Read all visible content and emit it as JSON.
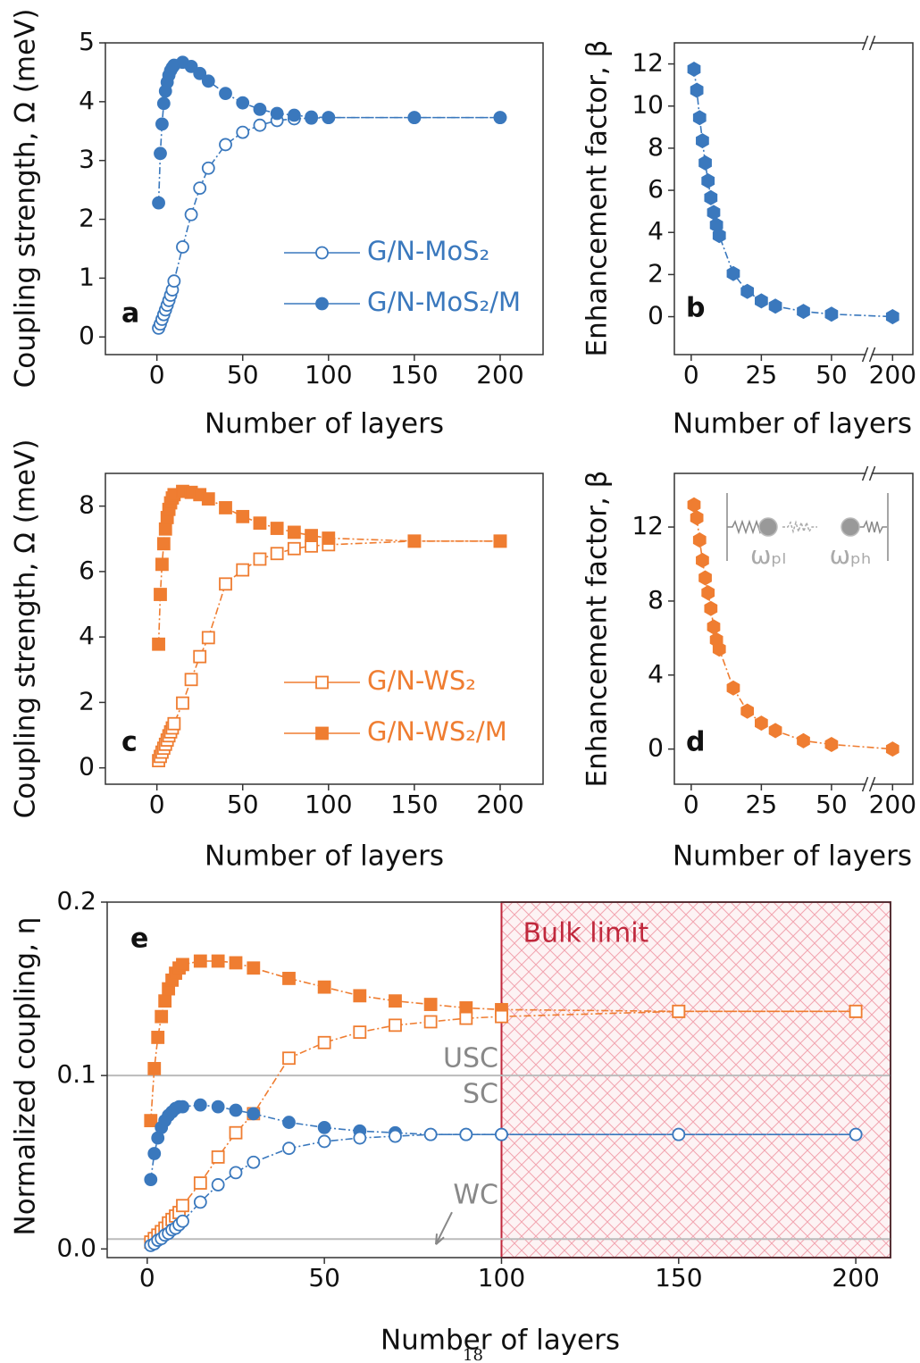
{
  "chart_data": [
    {
      "type": "line",
      "panel_label": "a",
      "xlabel": "Number of layers",
      "ylabel": "Coupling strength, Ω (meV)",
      "xlim": [
        -30,
        225
      ],
      "ylim": [
        -0.3,
        5
      ],
      "xticks": [
        0,
        50,
        100,
        150,
        200
      ],
      "yticks": [
        0,
        1,
        2,
        3,
        4,
        5
      ],
      "legend": "lower right",
      "series": [
        {
          "name": "G/N-MoS₂",
          "color": "#3a78bd",
          "marker": "circle",
          "filled": false,
          "x": [
            1,
            2,
            3,
            4,
            5,
            6,
            7,
            8,
            9,
            10,
            15,
            20,
            25,
            30,
            40,
            50,
            60,
            70,
            80,
            90,
            100,
            150,
            200
          ],
          "values": [
            0.15,
            0.22,
            0.3,
            0.38,
            0.46,
            0.54,
            0.62,
            0.71,
            0.8,
            0.95,
            1.53,
            2.08,
            2.53,
            2.87,
            3.27,
            3.48,
            3.6,
            3.68,
            3.71,
            3.72,
            3.73,
            3.73,
            3.73
          ]
        },
        {
          "name": "G/N-MoS₂/M",
          "color": "#3a78bd",
          "marker": "circle",
          "filled": true,
          "x": [
            1,
            2,
            3,
            4,
            5,
            6,
            7,
            8,
            9,
            10,
            15,
            20,
            25,
            30,
            40,
            50,
            60,
            70,
            80,
            90,
            100,
            150,
            200
          ],
          "values": [
            2.28,
            3.12,
            3.62,
            3.97,
            4.18,
            4.33,
            4.45,
            4.53,
            4.58,
            4.62,
            4.67,
            4.6,
            4.48,
            4.35,
            4.14,
            3.98,
            3.87,
            3.8,
            3.77,
            3.74,
            3.73,
            3.73,
            3.73
          ]
        }
      ]
    },
    {
      "type": "line",
      "panel_label": "b",
      "xlabel": "Number of layers",
      "ylabel": "Enhancement factor, β",
      "xlim": [
        -6,
        210
      ],
      "xbreak": [
        62,
        190
      ],
      "ylim": [
        -1.8,
        13
      ],
      "xticks": [
        0,
        25,
        50,
        200
      ],
      "yticks": [
        0,
        2,
        4,
        6,
        8,
        10,
        12
      ],
      "series": [
        {
          "color": "#3a78bd",
          "marker": "hexagon",
          "filled": true,
          "x": [
            1,
            2,
            3,
            4,
            5,
            6,
            7,
            8,
            9,
            10,
            15,
            20,
            25,
            30,
            40,
            50,
            200
          ],
          "values": [
            11.75,
            10.75,
            9.45,
            8.35,
            7.3,
            6.45,
            5.65,
            4.95,
            4.35,
            3.85,
            2.05,
            1.2,
            0.75,
            0.5,
            0.25,
            0.12,
            0
          ]
        }
      ]
    },
    {
      "type": "line",
      "panel_label": "c",
      "xlabel": "Number of layers",
      "ylabel": "Coupling strength, Ω (meV)",
      "xlim": [
        -30,
        225
      ],
      "ylim": [
        -0.5,
        9
      ],
      "xticks": [
        0,
        50,
        100,
        150,
        200
      ],
      "yticks": [
        0,
        2,
        4,
        6,
        8
      ],
      "legend": "lower right",
      "series": [
        {
          "name": "G/N-WS₂",
          "color": "#ef7d31",
          "marker": "square",
          "filled": false,
          "x": [
            1,
            2,
            3,
            4,
            5,
            6,
            7,
            8,
            9,
            10,
            15,
            20,
            25,
            30,
            40,
            50,
            60,
            70,
            80,
            90,
            100,
            150,
            200
          ],
          "values": [
            0.22,
            0.35,
            0.48,
            0.6,
            0.72,
            0.85,
            0.98,
            1.1,
            1.22,
            1.35,
            1.98,
            2.7,
            3.4,
            3.98,
            5.62,
            6.05,
            6.38,
            6.55,
            6.7,
            6.78,
            6.82,
            6.93,
            6.93
          ]
        },
        {
          "name": "G/N-WS₂/M",
          "color": "#ef7d31",
          "marker": "square",
          "filled": true,
          "x": [
            1,
            2,
            3,
            4,
            5,
            6,
            7,
            8,
            9,
            10,
            15,
            20,
            25,
            30,
            40,
            50,
            60,
            70,
            80,
            90,
            100,
            150,
            200
          ],
          "values": [
            3.78,
            5.3,
            6.22,
            6.85,
            7.3,
            7.65,
            7.9,
            8.1,
            8.25,
            8.35,
            8.45,
            8.42,
            8.35,
            8.22,
            7.95,
            7.68,
            7.48,
            7.32,
            7.2,
            7.1,
            7.02,
            6.93,
            6.93
          ]
        }
      ]
    },
    {
      "type": "line",
      "panel_label": "d",
      "xlabel": "Number of layers",
      "ylabel": "Enhancement factor, β",
      "xlim": [
        -6,
        210
      ],
      "xbreak": [
        62,
        190
      ],
      "ylim": [
        -1.9,
        14.9
      ],
      "xticks": [
        0,
        25,
        50,
        200
      ],
      "yticks": [
        0,
        4,
        8,
        12
      ],
      "inset_labels": [
        "ωₚₗ",
        "ωₚₕ"
      ],
      "series": [
        {
          "color": "#ef7d31",
          "marker": "hexagon",
          "filled": true,
          "x": [
            1,
            2,
            3,
            4,
            5,
            6,
            7,
            8,
            9,
            10,
            15,
            20,
            25,
            30,
            40,
            50,
            200
          ],
          "values": [
            13.2,
            12.5,
            11.3,
            10.2,
            9.25,
            8.45,
            7.6,
            6.6,
            5.9,
            5.4,
            3.3,
            2.05,
            1.4,
            1.0,
            0.45,
            0.25,
            0
          ]
        }
      ]
    },
    {
      "type": "line",
      "panel_label": "e",
      "xlabel": "Number of layers",
      "ylabel": "Normalized coupling, η",
      "xlim": [
        -11.3,
        209.8
      ],
      "ylim": [
        -0.005,
        0.2
      ],
      "xticks": [
        0,
        50,
        100,
        150,
        200
      ],
      "yticks": [
        {
          "value": 0,
          "label": "0.0"
        },
        0.1,
        0.2
      ],
      "reference_lines": [
        0.1,
        0.0057
      ],
      "annotations": [
        "USC",
        "SC",
        "WC"
      ],
      "region": {
        "from": 100,
        "label": "Bulk limit"
      },
      "series": [
        {
          "color": "#ef7d31",
          "marker": "square",
          "filled": true,
          "x": [
            1,
            2,
            3,
            4,
            5,
            6,
            7,
            8,
            9,
            10,
            15,
            20,
            25,
            30,
            40,
            50,
            60,
            70,
            80,
            90,
            100,
            150,
            200
          ],
          "values": [
            0.074,
            0.104,
            0.122,
            0.134,
            0.143,
            0.15,
            0.155,
            0.159,
            0.162,
            0.164,
            0.166,
            0.166,
            0.165,
            0.162,
            0.156,
            0.151,
            0.146,
            0.143,
            0.141,
            0.139,
            0.138,
            0.137,
            0.137
          ]
        },
        {
          "color": "#ef7d31",
          "marker": "square",
          "filled": false,
          "x": [
            1,
            2,
            3,
            4,
            5,
            6,
            7,
            8,
            9,
            10,
            15,
            20,
            25,
            30,
            40,
            50,
            60,
            70,
            80,
            90,
            100,
            150,
            200
          ],
          "values": [
            0.004,
            0.006,
            0.008,
            0.01,
            0.012,
            0.015,
            0.017,
            0.019,
            0.021,
            0.025,
            0.038,
            0.053,
            0.067,
            0.078,
            0.11,
            0.119,
            0.125,
            0.129,
            0.131,
            0.133,
            0.134,
            0.137,
            0.137
          ]
        },
        {
          "color": "#3a78bd",
          "marker": "circle",
          "filled": true,
          "x": [
            1,
            2,
            3,
            4,
            5,
            6,
            7,
            8,
            9,
            10,
            15,
            20,
            25,
            30,
            40,
            50,
            60,
            70,
            80,
            90,
            100,
            150,
            200
          ],
          "values": [
            0.04,
            0.055,
            0.064,
            0.07,
            0.074,
            0.077,
            0.079,
            0.081,
            0.082,
            0.082,
            0.083,
            0.082,
            0.08,
            0.078,
            0.073,
            0.07,
            0.068,
            0.067,
            0.066,
            0.066,
            0.066,
            0.066,
            0.066
          ]
        },
        {
          "color": "#3a78bd",
          "marker": "circle",
          "filled": false,
          "x": [
            1,
            2,
            3,
            4,
            5,
            6,
            7,
            8,
            9,
            10,
            15,
            20,
            25,
            30,
            40,
            50,
            60,
            70,
            80,
            90,
            100,
            150,
            200
          ],
          "values": [
            0.002,
            0.003,
            0.005,
            0.006,
            0.008,
            0.009,
            0.011,
            0.012,
            0.014,
            0.016,
            0.027,
            0.037,
            0.044,
            0.05,
            0.058,
            0.062,
            0.064,
            0.065,
            0.066,
            0.066,
            0.066,
            0.066,
            0.066
          ]
        }
      ]
    }
  ],
  "page_number": "18"
}
